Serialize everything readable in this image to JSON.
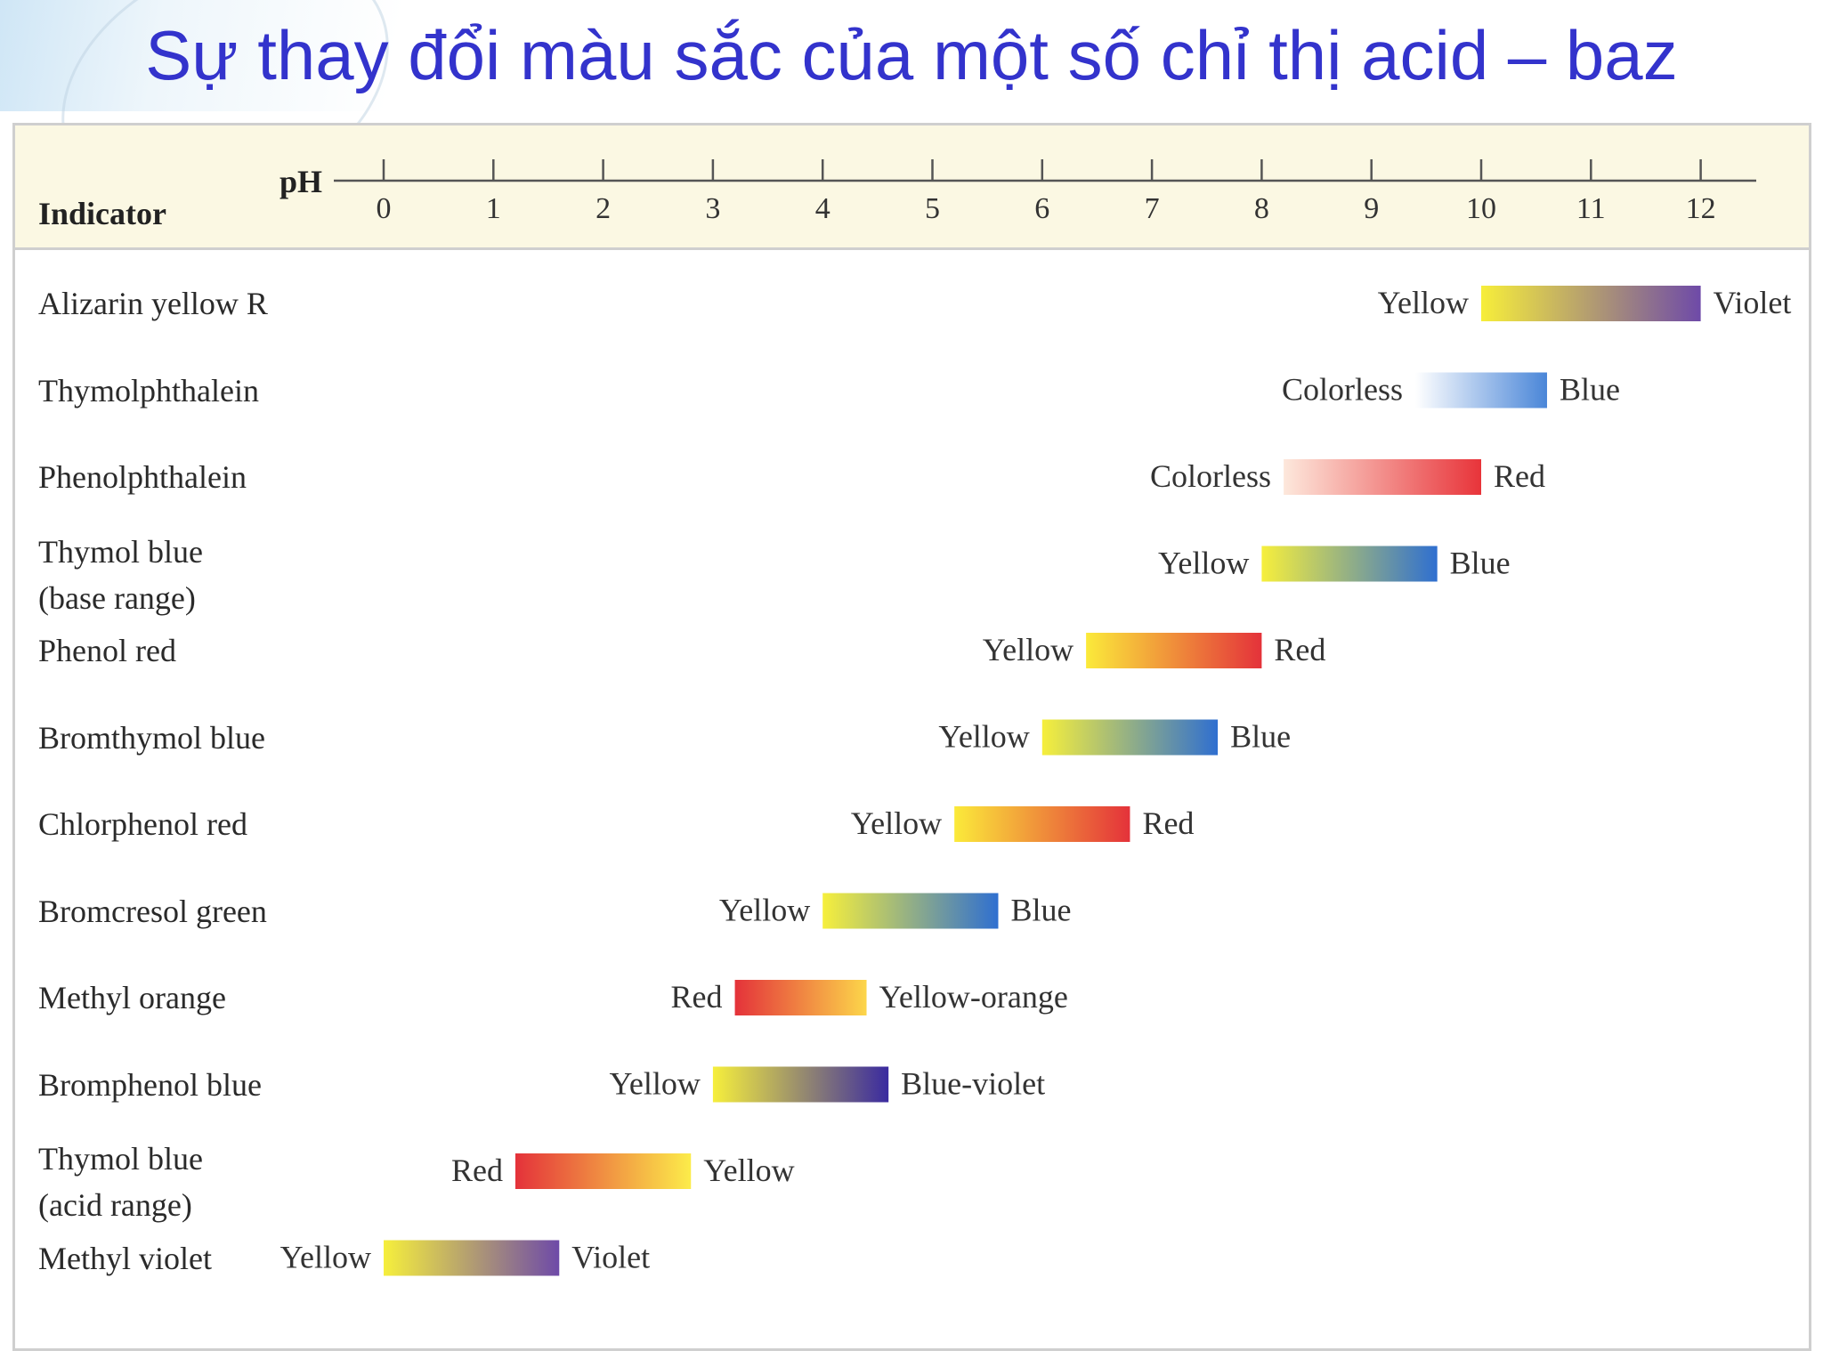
{
  "slide": {
    "title": "Sự thay đổi màu sắc của một số chỉ thị acid – baz"
  },
  "chart_data": {
    "type": "bar",
    "orientation": "horizontal-range",
    "column_header": "Indicator",
    "axis_label": "pH",
    "xlim": [
      0,
      12
    ],
    "ticks": [
      0,
      1,
      2,
      3,
      4,
      5,
      6,
      7,
      8,
      9,
      10,
      11,
      12
    ],
    "indicators": [
      {
        "name": "Alizarin yellow R",
        "range": [
          10.0,
          12.0
        ],
        "low_color": "Yellow",
        "high_color": "Violet",
        "gradient": [
          "#f7ee3a",
          "#6e4aa8"
        ]
      },
      {
        "name": "Thymolphthalein",
        "range": [
          9.4,
          10.6
        ],
        "low_color": "Colorless",
        "high_color": "Blue",
        "gradient": [
          "#ffffff",
          "#4a86d8"
        ]
      },
      {
        "name": "Phenolphthalein",
        "range": [
          8.2,
          10.0
        ],
        "low_color": "Colorless",
        "high_color": "Red",
        "gradient": [
          "#fde8dc",
          "#e8343a"
        ]
      },
      {
        "name": "Thymol blue",
        "name_sub": "(base range)",
        "range": [
          8.0,
          9.6
        ],
        "low_color": "Yellow",
        "high_color": "Blue",
        "gradient": [
          "#f6ef3c",
          "#2f6fd0"
        ]
      },
      {
        "name": "Phenol red",
        "range": [
          6.4,
          8.0
        ],
        "low_color": "Yellow",
        "high_color": "Red",
        "gradient": [
          "#fbea3a",
          "#e4323a"
        ]
      },
      {
        "name": "Bromthymol blue",
        "range": [
          6.0,
          7.6
        ],
        "low_color": "Yellow",
        "high_color": "Blue",
        "gradient": [
          "#f6ef3c",
          "#2f6fd0"
        ]
      },
      {
        "name": "Chlorphenol red",
        "range": [
          5.2,
          6.8
        ],
        "low_color": "Yellow",
        "high_color": "Red",
        "gradient": [
          "#fbea3a",
          "#e4323a"
        ]
      },
      {
        "name": "Bromcresol green",
        "range": [
          4.0,
          5.6
        ],
        "low_color": "Yellow",
        "high_color": "Blue",
        "gradient": [
          "#f6ef3c",
          "#2f6fd0"
        ]
      },
      {
        "name": "Methyl orange",
        "range": [
          3.2,
          4.4
        ],
        "low_color": "Red",
        "high_color": "Yellow-orange",
        "gradient": [
          "#e4323a",
          "#fcd64a"
        ]
      },
      {
        "name": "Bromphenol blue",
        "range": [
          3.0,
          4.6
        ],
        "low_color": "Yellow",
        "high_color": "Blue-violet",
        "gradient": [
          "#f6ef3c",
          "#3a2aa0"
        ]
      },
      {
        "name": "Thymol blue",
        "name_sub": "(acid range)",
        "range": [
          1.2,
          2.8
        ],
        "low_color": "Red",
        "high_color": "Yellow",
        "gradient": [
          "#e4323a",
          "#fcec4a"
        ]
      },
      {
        "name": "Methyl violet",
        "range": [
          0.0,
          1.6
        ],
        "low_color": "Yellow",
        "high_color": "Violet",
        "gradient": [
          "#f6ef3c",
          "#6e4aa8"
        ]
      }
    ]
  }
}
